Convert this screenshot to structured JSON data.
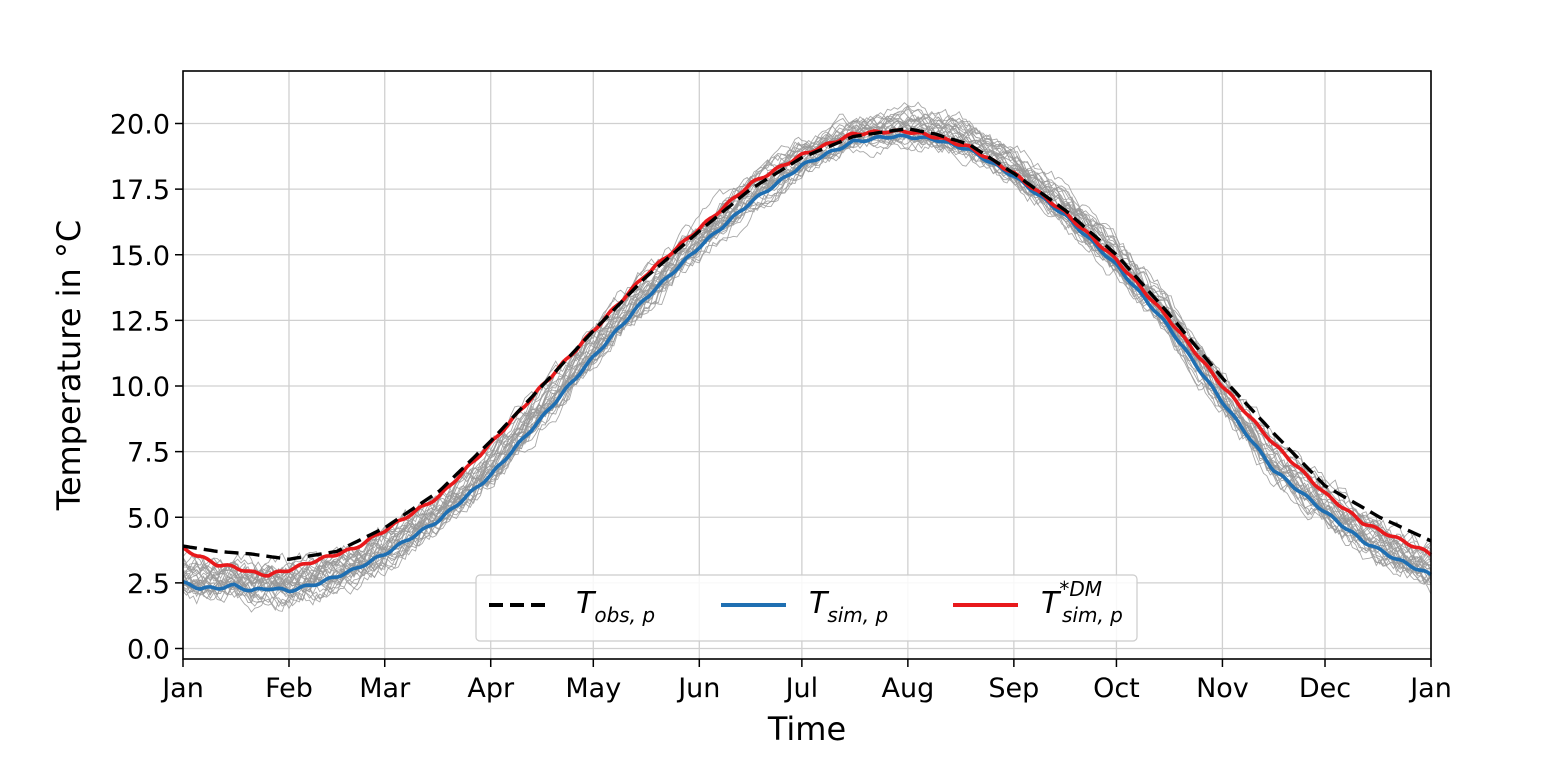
{
  "chart_data": {
    "type": "line",
    "title": "",
    "xlabel": "Time",
    "ylabel": "Temperature in °C",
    "x_ticks": [
      "Jan",
      "Feb",
      "Mar",
      "Apr",
      "May",
      "Jun",
      "Jul",
      "Aug",
      "Sep",
      "Oct",
      "Nov",
      "Dec",
      "Jan"
    ],
    "x_tick_days": [
      0,
      31,
      59,
      90,
      120,
      151,
      181,
      212,
      243,
      273,
      304,
      334,
      365
    ],
    "y_ticks": [
      "0.0",
      "2.5",
      "5.0",
      "7.5",
      "10.0",
      "12.5",
      "15.0",
      "17.5",
      "20.0"
    ],
    "xlim": [
      0,
      365
    ],
    "ylim": [
      -0.4,
      22.0
    ],
    "grid": true,
    "legend": {
      "placement": "lower-center",
      "entries": [
        {
          "symbol": "T",
          "subscript": "obs, p",
          "superscript": "",
          "style": "dashed",
          "color": "#000000"
        },
        {
          "symbol": "T",
          "subscript": "sim, p",
          "superscript": "",
          "style": "solid",
          "color": "#1f6fb2"
        },
        {
          "symbol": "T",
          "subscript": "sim, p",
          "superscript": "*DM",
          "style": "solid",
          "color": "#e8191c"
        }
      ]
    },
    "series": [
      {
        "name": "T_obs,p",
        "color": "#000000",
        "style": "dashed",
        "x": [
          0,
          10,
          20,
          31,
          45,
          59,
          75,
          90,
          105,
          120,
          135,
          151,
          166,
          181,
          196,
          206,
          212,
          220,
          230,
          243,
          258,
          273,
          288,
          304,
          319,
          334,
          350,
          365
        ],
        "y": [
          3.9,
          3.7,
          3.6,
          3.4,
          3.7,
          4.6,
          6.0,
          7.9,
          10.0,
          12.1,
          14.1,
          15.9,
          17.5,
          18.7,
          19.5,
          19.7,
          19.8,
          19.6,
          19.2,
          18.1,
          16.7,
          15.0,
          12.8,
          10.3,
          8.2,
          6.2,
          5.0,
          4.1
        ]
      },
      {
        "name": "T_sim,p",
        "color": "#1f6fb2",
        "style": "solid",
        "x": [
          0,
          5,
          10,
          15,
          20,
          25,
          31,
          40,
          50,
          59,
          75,
          90,
          105,
          120,
          135,
          151,
          166,
          181,
          196,
          206,
          212,
          220,
          230,
          243,
          258,
          273,
          288,
          304,
          319,
          334,
          345,
          355,
          365
        ],
        "y": [
          2.5,
          2.3,
          2.3,
          2.4,
          2.2,
          2.3,
          2.2,
          2.5,
          3.0,
          3.6,
          4.9,
          6.6,
          8.8,
          11.1,
          13.3,
          15.3,
          17.0,
          18.4,
          19.3,
          19.5,
          19.5,
          19.4,
          19.0,
          18.0,
          16.5,
          14.6,
          12.3,
          9.4,
          6.8,
          5.2,
          4.1,
          3.4,
          2.8
        ]
      },
      {
        "name": "T*DM_sim,p",
        "color": "#e8191c",
        "style": "solid",
        "x": [
          0,
          5,
          10,
          15,
          20,
          25,
          31,
          40,
          50,
          59,
          75,
          90,
          105,
          120,
          135,
          151,
          166,
          181,
          196,
          206,
          212,
          220,
          230,
          243,
          258,
          273,
          288,
          304,
          319,
          334,
          345,
          355,
          365
        ],
        "y": [
          3.8,
          3.5,
          3.2,
          3.1,
          2.9,
          2.8,
          3.0,
          3.4,
          3.8,
          4.5,
          5.8,
          7.8,
          10.0,
          12.1,
          14.2,
          16.0,
          17.7,
          18.8,
          19.6,
          19.7,
          19.7,
          19.5,
          19.1,
          18.1,
          16.6,
          14.8,
          12.6,
          10.0,
          7.8,
          5.9,
          4.8,
          4.2,
          3.6
        ]
      }
    ],
    "ensemble": {
      "color": "#999999",
      "member_count": 30,
      "description": "thin grey ensemble members scattered around T_sim,p"
    }
  }
}
